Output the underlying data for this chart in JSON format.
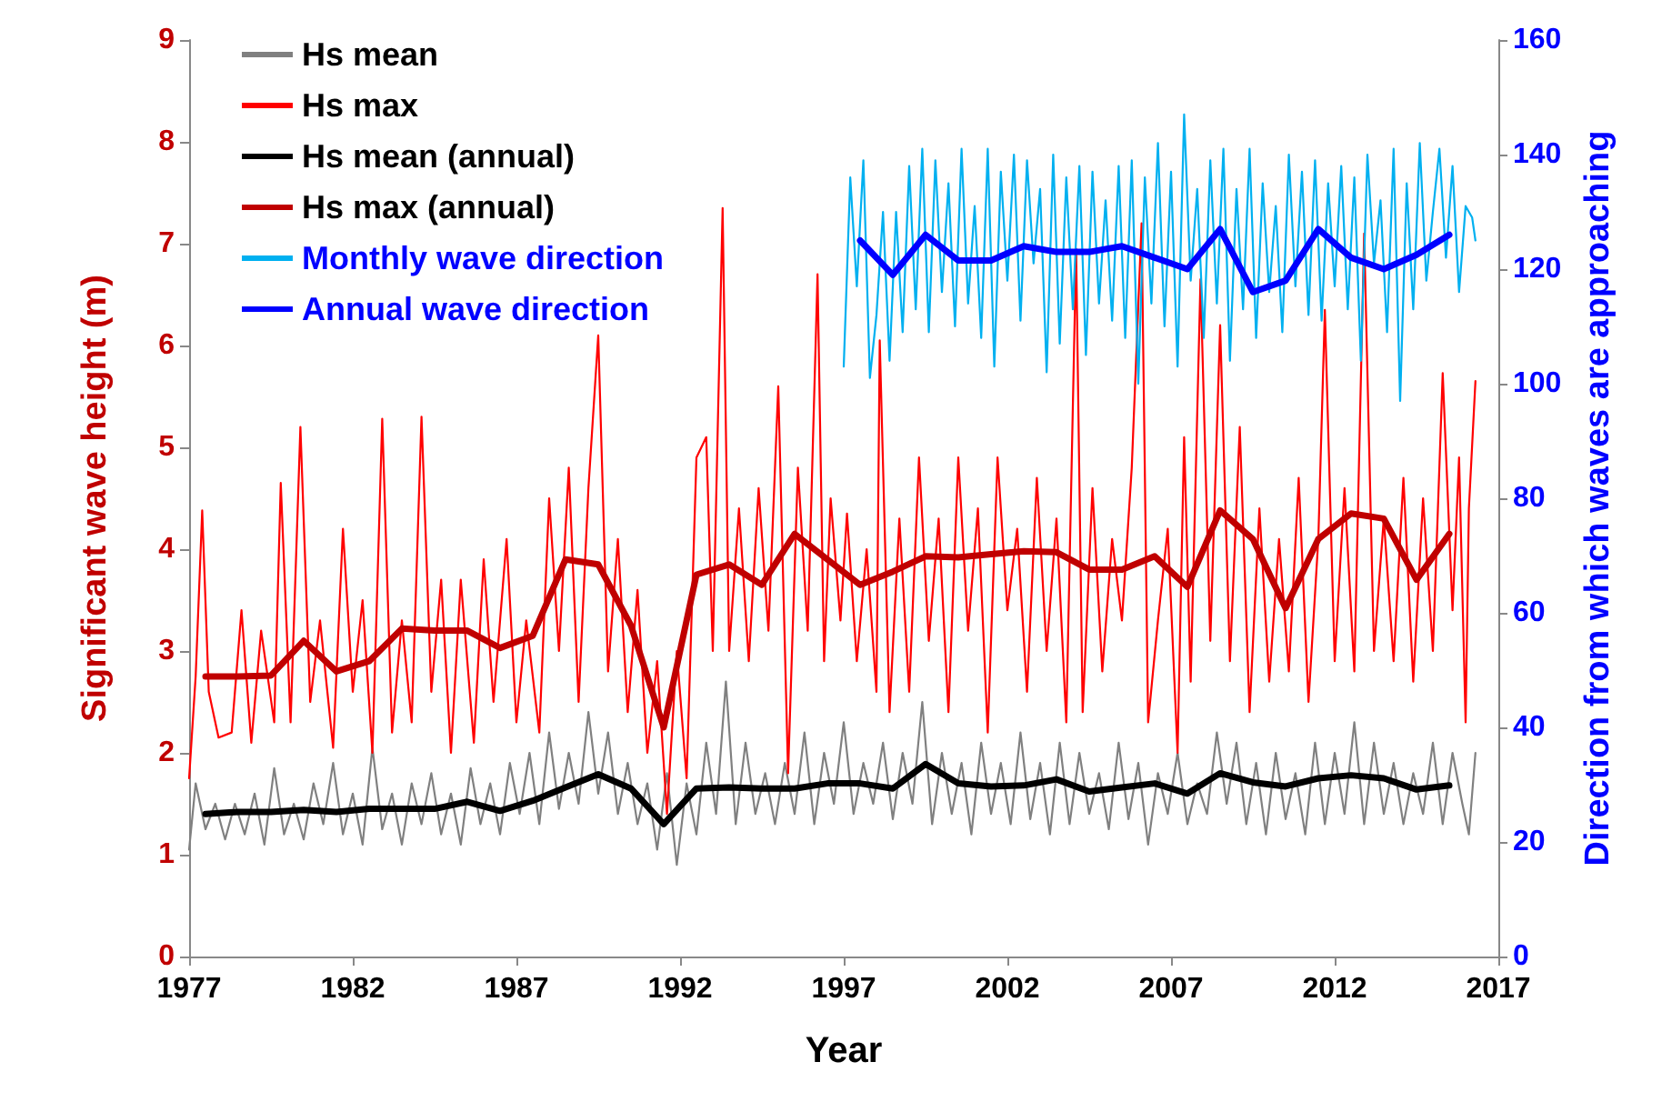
{
  "chart_data": {
    "type": "line",
    "xlabel": "Year",
    "ylabel": "Significant wave height (m)",
    "y2label": "Direction from which waves are approaching",
    "xlim": [
      1977,
      2017
    ],
    "xticks": [
      1977,
      1982,
      1987,
      1992,
      1997,
      2002,
      2007,
      2012,
      2017
    ],
    "ylim": [
      0,
      9
    ],
    "yticks": [
      0,
      1,
      2,
      3,
      4,
      5,
      6,
      7,
      8,
      9
    ],
    "y2lim": [
      0,
      160
    ],
    "y2ticks": [
      0,
      20,
      40,
      60,
      80,
      100,
      120,
      140,
      160
    ],
    "grid": false,
    "legend": "top left",
    "marker": "none",
    "series": [
      {
        "name": "Hs mean",
        "color": "#808080",
        "x": [
          1977.0,
          1977.2,
          1977.5,
          1977.8,
          1978.1,
          1978.4,
          1978.7,
          1979.0,
          1979.3,
          1979.6,
          1979.9,
          1980.2,
          1980.5,
          1980.8,
          1981.1,
          1981.4,
          1981.7,
          1982.0,
          1982.3,
          1982.6,
          1982.9,
          1983.2,
          1983.5,
          1983.8,
          1984.1,
          1984.4,
          1984.7,
          1985.0,
          1985.3,
          1985.6,
          1985.9,
          1986.2,
          1986.5,
          1986.8,
          1987.1,
          1987.4,
          1987.7,
          1988.0,
          1988.3,
          1988.6,
          1988.9,
          1989.2,
          1989.5,
          1989.8,
          1990.1,
          1990.4,
          1990.7,
          1991.0,
          1991.3,
          1991.6,
          1991.9,
          1992.2,
          1992.5,
          1992.8,
          1993.1,
          1993.4,
          1993.7,
          1994.0,
          1994.3,
          1994.6,
          1994.9,
          1995.2,
          1995.5,
          1995.8,
          1996.1,
          1996.4,
          1996.7,
          1997.0,
          1997.3,
          1997.6,
          1997.9,
          1998.2,
          1998.5,
          1998.8,
          1999.1,
          1999.4,
          1999.7,
          2000.0,
          2000.3,
          2000.6,
          2000.9,
          2001.2,
          2001.5,
          2001.8,
          2002.1,
          2002.4,
          2002.7,
          2003.0,
          2003.3,
          2003.6,
          2003.9,
          2004.2,
          2004.5,
          2004.8,
          2005.1,
          2005.4,
          2005.7,
          2006.0,
          2006.3,
          2006.6,
          2006.9,
          2007.2,
          2007.5,
          2007.8,
          2008.1,
          2008.4,
          2008.7,
          2009.0,
          2009.3,
          2009.6,
          2009.9,
          2010.2,
          2010.5,
          2010.8,
          2011.1,
          2011.4,
          2011.7,
          2012.0,
          2012.3,
          2012.6,
          2012.9,
          2013.2,
          2013.5,
          2013.8,
          2014.1,
          2014.4,
          2014.7,
          2015.0,
          2015.3,
          2015.6,
          2015.9,
          2016.1,
          2016.3
        ],
        "values": [
          1.05,
          1.7,
          1.25,
          1.5,
          1.15,
          1.5,
          1.2,
          1.6,
          1.1,
          1.85,
          1.2,
          1.5,
          1.15,
          1.7,
          1.3,
          1.9,
          1.2,
          1.6,
          1.1,
          2.05,
          1.25,
          1.6,
          1.1,
          1.7,
          1.3,
          1.8,
          1.2,
          1.6,
          1.1,
          1.85,
          1.3,
          1.7,
          1.2,
          1.9,
          1.4,
          2.0,
          1.3,
          2.2,
          1.45,
          2.0,
          1.5,
          2.4,
          1.6,
          2.2,
          1.4,
          1.9,
          1.3,
          1.7,
          1.05,
          1.8,
          0.9,
          1.7,
          1.2,
          2.1,
          1.4,
          2.7,
          1.3,
          2.1,
          1.4,
          1.8,
          1.3,
          1.9,
          1.4,
          2.2,
          1.3,
          2.0,
          1.5,
          2.3,
          1.4,
          1.9,
          1.5,
          2.1,
          1.35,
          2.0,
          1.5,
          2.5,
          1.3,
          2.0,
          1.4,
          1.9,
          1.2,
          2.1,
          1.4,
          1.9,
          1.3,
          2.2,
          1.35,
          1.9,
          1.2,
          2.1,
          1.3,
          2.0,
          1.4,
          1.8,
          1.25,
          2.1,
          1.35,
          1.9,
          1.1,
          1.8,
          1.4,
          2.0,
          1.3,
          1.7,
          1.4,
          2.2,
          1.5,
          2.1,
          1.3,
          1.9,
          1.2,
          2.0,
          1.35,
          1.8,
          1.2,
          2.1,
          1.3,
          2.0,
          1.4,
          2.3,
          1.3,
          2.1,
          1.4,
          1.9,
          1.3,
          1.8,
          1.4,
          2.1,
          1.3,
          2.0,
          1.5,
          1.2,
          2.0
        ]
      },
      {
        "name": "Hs max",
        "color": "#ff0000",
        "x": [
          1977.0,
          1977.2,
          1977.4,
          1977.6,
          1977.9,
          1978.3,
          1978.6,
          1978.9,
          1979.2,
          1979.6,
          1979.8,
          1980.1,
          1980.4,
          1980.7,
          1981.0,
          1981.4,
          1981.7,
          1982.0,
          1982.3,
          1982.6,
          1982.9,
          1983.2,
          1983.5,
          1983.8,
          1984.1,
          1984.4,
          1984.7,
          1985.0,
          1985.3,
          1985.7,
          1986.0,
          1986.3,
          1986.7,
          1987.0,
          1987.3,
          1987.7,
          1988.0,
          1988.3,
          1988.6,
          1988.9,
          1989.2,
          1989.5,
          1989.8,
          1990.1,
          1990.4,
          1990.7,
          1991.0,
          1991.3,
          1991.6,
          1991.9,
          1992.2,
          1992.5,
          1992.8,
          1993.0,
          1993.3,
          1993.5,
          1993.8,
          1994.1,
          1994.4,
          1994.7,
          1995.0,
          1995.3,
          1995.6,
          1995.9,
          1996.2,
          1996.4,
          1996.6,
          1996.9,
          1997.1,
          1997.4,
          1997.7,
          1998.0,
          1998.1,
          1998.4,
          1998.7,
          1999.0,
          1999.3,
          1999.6,
          1999.9,
          2000.2,
          2000.5,
          2000.8,
          2001.1,
          2001.4,
          2001.7,
          2002.0,
          2002.3,
          2002.6,
          2002.9,
          2003.2,
          2003.5,
          2003.8,
          2004.1,
          2004.3,
          2004.6,
          2004.9,
          2005.2,
          2005.5,
          2005.8,
          2006.1,
          2006.3,
          2006.6,
          2006.9,
          2007.2,
          2007.4,
          2007.6,
          2007.9,
          2008.2,
          2008.5,
          2008.8,
          2009.1,
          2009.4,
          2009.7,
          2010.0,
          2010.3,
          2010.6,
          2010.9,
          2011.2,
          2011.5,
          2011.7,
          2012.0,
          2012.3,
          2012.6,
          2012.9,
          2013.2,
          2013.5,
          2013.8,
          2014.1,
          2014.4,
          2014.7,
          2015.0,
          2015.3,
          2015.6,
          2015.8,
          2016.0,
          2016.1,
          2016.3
        ],
        "values": [
          1.75,
          2.75,
          4.38,
          2.6,
          2.15,
          2.2,
          3.4,
          2.1,
          3.2,
          2.3,
          4.65,
          2.3,
          5.2,
          2.5,
          3.3,
          2.05,
          4.2,
          2.6,
          3.5,
          2.0,
          5.28,
          2.2,
          3.3,
          2.3,
          5.3,
          2.6,
          3.7,
          2.0,
          3.7,
          2.1,
          3.9,
          2.5,
          4.1,
          2.3,
          3.3,
          2.2,
          4.5,
          3.0,
          4.8,
          2.5,
          4.6,
          6.1,
          2.8,
          4.1,
          2.4,
          3.6,
          2.0,
          2.9,
          1.4,
          3.0,
          1.75,
          4.9,
          5.1,
          3.0,
          7.35,
          3.0,
          4.4,
          2.9,
          4.6,
          3.2,
          5.6,
          1.8,
          4.8,
          3.2,
          6.7,
          2.9,
          4.5,
          3.3,
          4.35,
          2.9,
          4.0,
          2.6,
          6.05,
          2.4,
          4.3,
          2.6,
          4.9,
          3.1,
          4.3,
          2.4,
          4.9,
          3.2,
          4.4,
          2.2,
          4.9,
          3.4,
          4.2,
          2.6,
          4.7,
          3.0,
          4.3,
          2.3,
          6.95,
          2.4,
          4.6,
          2.8,
          4.1,
          3.3,
          4.8,
          7.2,
          2.3,
          3.3,
          4.2,
          2.0,
          5.1,
          2.7,
          6.65,
          3.1,
          6.2,
          2.9,
          5.2,
          2.4,
          4.4,
          2.7,
          4.1,
          2.8,
          4.7,
          2.5,
          4.1,
          6.35,
          2.9,
          4.6,
          2.8,
          7.1,
          3.0,
          4.3,
          2.9,
          4.7,
          2.7,
          4.5,
          3.0,
          5.73,
          3.4,
          4.9,
          2.3,
          4.4,
          5.65
        ]
      },
      {
        "name": "Hs mean (annual)",
        "color": "#000000",
        "x": [
          1977.5,
          1978.5,
          1979.5,
          1980.5,
          1981.5,
          1982.5,
          1983.5,
          1984.5,
          1985.5,
          1986.5,
          1987.5,
          1988.5,
          1989.5,
          1990.5,
          1991.5,
          1992.5,
          1993.5,
          1994.5,
          1995.5,
          1996.5,
          1997.5,
          1998.5,
          1999.5,
          2000.5,
          2001.5,
          2002.5,
          2003.5,
          2004.5,
          2005.5,
          2006.5,
          2007.5,
          2008.5,
          2009.5,
          2010.5,
          2011.5,
          2012.5,
          2013.5,
          2014.5,
          2015.5
        ],
        "values": [
          1.4,
          1.42,
          1.42,
          1.44,
          1.42,
          1.45,
          1.45,
          1.45,
          1.52,
          1.43,
          1.53,
          1.66,
          1.79,
          1.65,
          1.3,
          1.65,
          1.66,
          1.65,
          1.65,
          1.7,
          1.7,
          1.65,
          1.89,
          1.7,
          1.67,
          1.68,
          1.74,
          1.62,
          1.66,
          1.7,
          1.6,
          1.8,
          1.71,
          1.67,
          1.75,
          1.78,
          1.75,
          1.64,
          1.68
        ]
      },
      {
        "name": "Hs max (annual)",
        "color": "#c00000",
        "x": [
          1977.5,
          1978.5,
          1979.5,
          1980.5,
          1981.5,
          1982.5,
          1983.5,
          1984.5,
          1985.5,
          1986.5,
          1987.5,
          1988.5,
          1989.5,
          1990.5,
          1991.5,
          1992.5,
          1993.5,
          1994.5,
          1995.5,
          1996.5,
          1997.5,
          1998.5,
          1999.5,
          2000.5,
          2001.5,
          2002.5,
          2003.5,
          2004.5,
          2005.5,
          2006.5,
          2007.5,
          2008.5,
          2009.5,
          2010.5,
          2011.5,
          2012.5,
          2013.5,
          2014.5,
          2015.5
        ],
        "values": [
          2.75,
          2.75,
          2.76,
          3.1,
          2.8,
          2.9,
          3.22,
          3.2,
          3.2,
          3.03,
          3.15,
          3.9,
          3.85,
          3.25,
          2.25,
          3.75,
          3.85,
          3.65,
          4.15,
          3.9,
          3.65,
          3.78,
          3.93,
          3.92,
          3.95,
          3.98,
          3.97,
          3.8,
          3.8,
          3.93,
          3.63,
          4.38,
          4.1,
          3.42,
          4.1,
          4.35,
          4.3,
          3.7,
          4.15
        ]
      },
      {
        "name": "Monthly wave direction",
        "color": "#00b0f0",
        "axis": "y2",
        "x": [
          1997.0,
          1997.2,
          1997.4,
          1997.6,
          1997.8,
          1998.0,
          1998.2,
          1998.4,
          1998.6,
          1998.8,
          1999.0,
          1999.2,
          1999.4,
          1999.6,
          1999.8,
          2000.0,
          2000.2,
          2000.4,
          2000.6,
          2000.8,
          2001.0,
          2001.2,
          2001.4,
          2001.6,
          2001.8,
          2002.0,
          2002.2,
          2002.4,
          2002.6,
          2002.8,
          2003.0,
          2003.2,
          2003.4,
          2003.6,
          2003.8,
          2004.0,
          2004.2,
          2004.4,
          2004.6,
          2004.8,
          2005.0,
          2005.2,
          2005.4,
          2005.6,
          2005.8,
          2006.0,
          2006.2,
          2006.4,
          2006.6,
          2006.8,
          2007.0,
          2007.2,
          2007.4,
          2007.6,
          2007.8,
          2008.0,
          2008.2,
          2008.4,
          2008.6,
          2008.8,
          2009.0,
          2009.2,
          2009.4,
          2009.6,
          2009.8,
          2010.0,
          2010.2,
          2010.4,
          2010.6,
          2010.8,
          2011.0,
          2011.2,
          2011.4,
          2011.6,
          2011.8,
          2012.0,
          2012.2,
          2012.4,
          2012.6,
          2012.8,
          2013.0,
          2013.2,
          2013.4,
          2013.6,
          2013.8,
          2014.0,
          2014.2,
          2014.4,
          2014.6,
          2014.8,
          2015.0,
          2015.2,
          2015.4,
          2015.6,
          2015.8,
          2016.0,
          2016.2,
          2016.3
        ],
        "values": [
          103,
          136,
          117,
          139,
          101,
          112,
          130,
          104,
          130,
          109,
          138,
          113,
          141,
          109,
          139,
          116,
          135,
          110,
          141,
          114,
          131,
          108,
          141,
          103,
          137,
          118,
          140,
          111,
          139,
          121,
          134,
          102,
          140,
          107,
          136,
          113,
          138,
          105,
          137,
          114,
          132,
          111,
          138,
          108,
          139,
          100,
          136,
          114,
          142,
          110,
          137,
          103,
          147,
          118,
          134,
          108,
          139,
          114,
          141,
          104,
          134,
          113,
          141,
          108,
          135,
          116,
          131,
          109,
          140,
          117,
          137,
          112,
          139,
          111,
          135,
          117,
          138,
          113,
          136,
          104,
          140,
          121,
          132,
          109,
          141,
          97,
          135,
          113,
          142,
          118,
          130,
          141,
          122,
          138,
          116,
          131,
          129,
          125
        ]
      },
      {
        "name": "Annual wave direction",
        "color": "#0000ff",
        "axis": "y2",
        "x": [
          1997.5,
          1998.5,
          1999.5,
          2000.5,
          2001.5,
          2002.5,
          2003.5,
          2004.5,
          2005.5,
          2006.5,
          2007.5,
          2008.5,
          2009.5,
          2010.5,
          2011.5,
          2012.5,
          2013.5,
          2014.5,
          2015.5
        ],
        "values": [
          125,
          119,
          126,
          121.5,
          121.5,
          124,
          123,
          123,
          124,
          122,
          120,
          127,
          116,
          118,
          127,
          122,
          120,
          122.5,
          126
        ]
      }
    ]
  }
}
